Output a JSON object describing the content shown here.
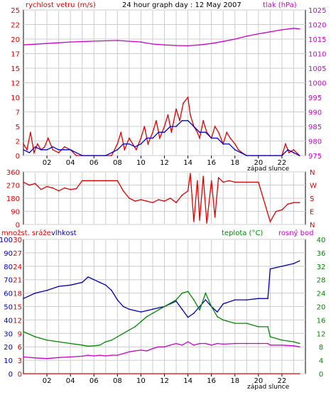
{
  "header": {
    "title": "24 hour graph day : 12 May 2007",
    "wind_label": "rychlost vetru (m/s)",
    "pressure_label": "tlak (hPa)"
  },
  "sunset_label": "západ slunce",
  "colors": {
    "wind_gust": "#dd0000",
    "wind_avg": "#0000cc",
    "pressure": "#cc00cc",
    "direction": "#dd0000",
    "humidity": "#0000aa",
    "temperature": "#008800",
    "dewpoint": "#cc00cc",
    "rain": "#dd0000",
    "grid": "#cccccc"
  },
  "chart_data": [
    {
      "type": "line",
      "title": "24 hour graph day : 12 May 2007",
      "xlabel": "",
      "x_ticks": [
        "02",
        "04",
        "06",
        "08",
        "10",
        "12",
        "14",
        "16",
        "18",
        "20",
        "22"
      ],
      "ylabel_left": "rychlost vetru (m/s)",
      "ylabel_right": "tlak (hPa)",
      "ylim_left": [
        0,
        25
      ],
      "ylim_right": [
        975,
        1025
      ],
      "yticks_left": [
        "0",
        "2",
        "5",
        "7",
        "10",
        "12",
        "15",
        "17",
        "20",
        "22",
        "25"
      ],
      "yticks_right": [
        "975",
        "980",
        "985",
        "990",
        "995",
        "1000",
        "1005",
        "1010",
        "1015",
        "1020",
        "1025"
      ],
      "series": [
        {
          "name": "rychlost vetru (m/s)",
          "axis": "left",
          "color": "#dd0000",
          "x": [
            0,
            0.3,
            0.6,
            0.9,
            1.2,
            1.5,
            1.8,
            2.1,
            2.5,
            3,
            3.5,
            4,
            4.5,
            5,
            5.5,
            6,
            6.5,
            7,
            7.5,
            8,
            8.3,
            8.6,
            9,
            9.3,
            9.6,
            10,
            10.3,
            10.6,
            11,
            11.3,
            11.6,
            12,
            12.3,
            12.6,
            13,
            13.3,
            13.6,
            14,
            14.2,
            14.5,
            14.8,
            15,
            15.3,
            15.6,
            16,
            16.3,
            16.6,
            17,
            17.3,
            17.6,
            18,
            18.3,
            18.6,
            19,
            19.5,
            20,
            20.5,
            21,
            21.5,
            22,
            22.3,
            22.6,
            23,
            23.5
          ],
          "y": [
            2,
            1,
            4,
            0.5,
            2,
            1,
            1.5,
            3,
            1,
            0.5,
            1.5,
            1,
            0,
            0,
            0,
            0,
            0,
            0,
            0,
            2,
            4,
            1,
            3,
            2,
            1,
            3,
            5,
            2,
            4,
            6,
            3,
            5,
            7,
            4,
            8,
            6,
            9,
            10,
            7,
            5,
            4,
            3,
            6,
            4,
            3,
            5,
            4,
            2,
            4,
            3,
            2,
            1,
            0.5,
            0,
            0,
            0,
            0,
            0,
            0,
            0,
            2,
            0.5,
            1,
            0
          ]
        },
        {
          "name": "wind average",
          "axis": "left",
          "color": "#0000cc",
          "x": [
            0,
            0.5,
            1,
            1.5,
            2,
            2.5,
            3,
            3.5,
            4,
            4.5,
            5,
            6,
            7,
            8,
            8.5,
            9,
            9.5,
            10,
            10.5,
            11,
            11.5,
            12,
            12.5,
            13,
            13.5,
            14,
            14.5,
            15,
            15.5,
            16,
            16.5,
            17,
            17.5,
            18,
            18.5,
            19,
            20,
            21,
            22,
            22.5,
            23,
            23.5
          ],
          "y": [
            1,
            0.5,
            1.5,
            1,
            1,
            1.5,
            1,
            1,
            1,
            0.5,
            0,
            0,
            0,
            1,
            2,
            2,
            1.5,
            2,
            3,
            3,
            4,
            4,
            5,
            5,
            6,
            6,
            5,
            4,
            4,
            3,
            3,
            2,
            2,
            1,
            0.5,
            0,
            0,
            0,
            0,
            1,
            0.5,
            0
          ]
        },
        {
          "name": "tlak (hPa)",
          "axis": "right",
          "color": "#cc00cc",
          "x": [
            0,
            2,
            4,
            6,
            8,
            10,
            11,
            12,
            13,
            14,
            15,
            16,
            17,
            18,
            19,
            20,
            21,
            22,
            23,
            23.5
          ],
          "y": [
            1013,
            1013.5,
            1014,
            1014.3,
            1014.5,
            1014,
            1013.3,
            1013,
            1012.8,
            1012.7,
            1013,
            1013.5,
            1014.2,
            1015,
            1016,
            1016.8,
            1017.5,
            1018.2,
            1018.7,
            1018.5
          ]
        }
      ]
    },
    {
      "type": "line",
      "title": "",
      "ylabel": "",
      "ylim": [
        0,
        360
      ],
      "yticks_left": [
        "0",
        "90",
        "180",
        "270",
        "360"
      ],
      "yticks_right": [
        "N",
        "E",
        "S",
        "W",
        "N"
      ],
      "series": [
        {
          "name": "",
          "color": "#dd0000",
          "x": [
            0,
            0.5,
            1,
            1.5,
            2,
            2.5,
            3,
            3.5,
            4,
            4.5,
            5,
            5.5,
            6,
            7,
            8,
            8.5,
            9,
            9.5,
            10,
            10.5,
            11,
            11.5,
            12,
            12.5,
            13,
            13.5,
            14,
            14.2,
            14.5,
            14.8,
            15,
            15.3,
            15.6,
            16,
            16.3,
            16.6,
            17,
            17.5,
            18,
            19,
            20,
            21,
            21.5,
            22,
            22.5,
            23,
            23.5
          ],
          "y": [
            290,
            270,
            280,
            240,
            260,
            250,
            230,
            250,
            240,
            245,
            300,
            300,
            300,
            300,
            300,
            230,
            180,
            160,
            170,
            160,
            150,
            170,
            160,
            180,
            150,
            200,
            230,
            350,
            20,
            300,
            30,
            330,
            10,
            300,
            50,
            320,
            290,
            300,
            290,
            290,
            290,
            20,
            90,
            100,
            140,
            150,
            150
          ]
        }
      ]
    },
    {
      "type": "line",
      "title": "",
      "ylabel_left": "vlhkost",
      "ylabel_left2": "množst. sráže",
      "ylabel_right": "teplota (°C)",
      "ylabel_right2": "rosný bod",
      "ylim_humidity": [
        0,
        100
      ],
      "ylim_rain": [
        0,
        30
      ],
      "ylim_temp": [
        0,
        40
      ],
      "yticks_humidity": [
        "0",
        "10",
        "20",
        "30",
        "40",
        "50",
        "60",
        "70",
        "80",
        "90",
        "100"
      ],
      "yticks_rain": [
        "0",
        "3",
        "6",
        "9",
        "12",
        "15",
        "18",
        "21",
        "24",
        "27",
        "30"
      ],
      "yticks_temp": [
        "0",
        "4",
        "8",
        "12",
        "16",
        "20",
        "24",
        "28",
        "32",
        "36",
        "40"
      ],
      "series": [
        {
          "name": "vlhkost",
          "axis": "humidity",
          "color": "#0000aa",
          "x": [
            0,
            1,
            2,
            3,
            4,
            5,
            5.5,
            6,
            6.5,
            7,
            7.5,
            8,
            8.5,
            9,
            9.5,
            10,
            10.5,
            11,
            11.5,
            12,
            12.5,
            13,
            13.5,
            14,
            14.5,
            15,
            15.5,
            16,
            16.5,
            17,
            18,
            19,
            20,
            20.8,
            21,
            22,
            23,
            23.5
          ],
          "y": [
            56,
            60,
            62,
            65,
            66,
            68,
            72,
            70,
            68,
            66,
            62,
            55,
            50,
            48,
            47,
            46,
            47,
            48,
            49,
            50,
            52,
            54,
            48,
            42,
            45,
            50,
            55,
            50,
            46,
            52,
            55,
            55,
            56,
            56,
            78,
            80,
            82,
            84
          ]
        },
        {
          "name": "teplota (°C)",
          "axis": "temp",
          "color": "#008800",
          "x": [
            0,
            1,
            2,
            3,
            4,
            5,
            5.5,
            6,
            6.5,
            7,
            7.5,
            8,
            8.5,
            9,
            9.5,
            10,
            10.5,
            11,
            11.5,
            12,
            12.5,
            13,
            13.5,
            14,
            14.5,
            15,
            15.5,
            16,
            16.5,
            17,
            18,
            19,
            20,
            20.8,
            21,
            22,
            23,
            23.5
          ],
          "y": [
            12.5,
            11,
            10,
            9.5,
            9,
            8.5,
            8.2,
            8.3,
            8.5,
            9.5,
            10,
            11,
            12,
            13,
            14,
            15.5,
            17,
            18,
            19,
            20,
            21,
            22,
            24,
            24.5,
            22,
            19,
            24,
            20,
            17,
            16,
            15,
            15,
            14,
            14,
            11,
            10,
            9.5,
            9
          ]
        },
        {
          "name": "rosný bod",
          "axis": "temp",
          "color": "#cc00cc",
          "x": [
            0,
            1,
            2,
            3,
            4,
            5,
            5.5,
            6,
            6.5,
            7,
            7.5,
            8,
            8.5,
            9,
            9.5,
            10,
            10.5,
            11,
            11.5,
            12,
            12.5,
            13,
            13.5,
            14,
            14.5,
            15,
            15.5,
            16,
            16.5,
            17,
            18,
            19,
            20,
            20.8,
            21,
            22,
            23,
            23.5
          ],
          "y": [
            5,
            4.7,
            4.5,
            4.8,
            5,
            5.2,
            5.5,
            5.3,
            5.5,
            5.3,
            5.5,
            5.5,
            6,
            6.5,
            6.8,
            7,
            6.8,
            7.5,
            8,
            8,
            8.5,
            9,
            8.5,
            9.5,
            8.5,
            9,
            9,
            8.5,
            9,
            8.8,
            9,
            9,
            9,
            9,
            8.5,
            8.5,
            8.3,
            8
          ]
        },
        {
          "name": "množst. sráže",
          "axis": "rain",
          "color": "#dd0000",
          "x": [
            0,
            23.5
          ],
          "y": [
            0,
            0
          ]
        }
      ]
    }
  ]
}
